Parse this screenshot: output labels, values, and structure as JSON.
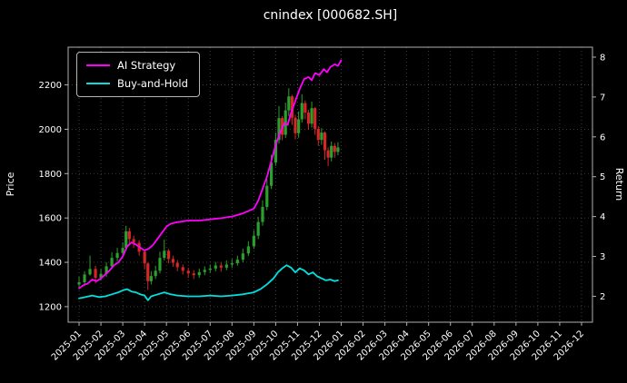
{
  "title": "cnindex [000682.SH]",
  "legend": {
    "items": [
      {
        "label": "AI Strategy",
        "color": "#ff00ff"
      },
      {
        "label": "Buy-and-Hold",
        "color": "#00e0e0"
      }
    ]
  },
  "chart_data": {
    "type": "candlestick+line",
    "title": "cnindex [000682.SH]",
    "background": "#000000",
    "grid": true,
    "legend_position": "upper left",
    "colors": {
      "grid": "#4d4d4d",
      "spine": "#b0b0b0",
      "text": "#ffffff"
    },
    "x_tick_labels": [
      "2025-01",
      "2025-02",
      "2025-03",
      "2025-04",
      "2025-05",
      "2025-06",
      "2025-07",
      "2025-08",
      "2025-09",
      "2025-10",
      "2025-11",
      "2025-12",
      "2026-01",
      "2026-02",
      "2026-03",
      "2026-04",
      "2026-05",
      "2026-06",
      "2026-07",
      "2026-08",
      "2026-09",
      "2026-10",
      "2026-11",
      "2026-12"
    ],
    "x_range_months": [
      -0.5,
      23.5
    ],
    "left_axis": {
      "label": "Price",
      "ticks": [
        1200,
        1400,
        1600,
        1800,
        2000,
        2200
      ],
      "range": [
        1130,
        2370
      ]
    },
    "right_axis": {
      "label": "Return",
      "ticks": [
        2,
        3,
        4,
        5,
        6,
        7,
        8
      ],
      "range": [
        1.35,
        8.25
      ]
    },
    "candles": {
      "name": "OHLC price (t = months since 2025-01)",
      "up_color": "#2ca02c",
      "down_color": "#d62728",
      "columns": [
        "t",
        "open",
        "high",
        "low",
        "close"
      ],
      "points": [
        [
          0.0,
          1300,
          1335,
          1280,
          1310
        ],
        [
          0.25,
          1310,
          1360,
          1295,
          1345
        ],
        [
          0.5,
          1345,
          1430,
          1340,
          1370
        ],
        [
          0.75,
          1370,
          1385,
          1305,
          1330
        ],
        [
          1.0,
          1330,
          1370,
          1318,
          1348
        ],
        [
          1.25,
          1348,
          1400,
          1335,
          1382
        ],
        [
          1.5,
          1382,
          1445,
          1370,
          1420
        ],
        [
          1.75,
          1420,
          1465,
          1405,
          1442
        ],
        [
          2.0,
          1442,
          1490,
          1430,
          1465
        ],
        [
          2.15,
          1465,
          1565,
          1460,
          1540
        ],
        [
          2.3,
          1540,
          1555,
          1480,
          1505
        ],
        [
          2.5,
          1505,
          1520,
          1465,
          1488
        ],
        [
          2.75,
          1488,
          1500,
          1430,
          1448
        ],
        [
          3.0,
          1448,
          1455,
          1370,
          1395
        ],
        [
          3.15,
          1395,
          1400,
          1275,
          1315
        ],
        [
          3.3,
          1315,
          1360,
          1300,
          1338
        ],
        [
          3.5,
          1338,
          1385,
          1325,
          1362
        ],
        [
          3.7,
          1362,
          1448,
          1350,
          1420
        ],
        [
          3.9,
          1420,
          1502,
          1408,
          1452
        ],
        [
          4.1,
          1452,
          1460,
          1395,
          1415
        ],
        [
          4.3,
          1415,
          1430,
          1380,
          1398
        ],
        [
          4.5,
          1398,
          1410,
          1360,
          1378
        ],
        [
          4.75,
          1378,
          1390,
          1345,
          1362
        ],
        [
          5.0,
          1362,
          1375,
          1330,
          1350
        ],
        [
          5.25,
          1350,
          1365,
          1325,
          1342
        ],
        [
          5.5,
          1342,
          1372,
          1330,
          1356
        ],
        [
          5.75,
          1356,
          1382,
          1342,
          1366
        ],
        [
          6.0,
          1366,
          1390,
          1352,
          1372
        ],
        [
          6.25,
          1372,
          1402,
          1360,
          1386
        ],
        [
          6.5,
          1386,
          1398,
          1358,
          1376
        ],
        [
          6.75,
          1376,
          1408,
          1364,
          1390
        ],
        [
          7.0,
          1390,
          1415,
          1375,
          1396
        ],
        [
          7.25,
          1396,
          1430,
          1385,
          1412
        ],
        [
          7.5,
          1412,
          1462,
          1400,
          1440
        ],
        [
          7.75,
          1440,
          1495,
          1428,
          1472
        ],
        [
          8.0,
          1472,
          1545,
          1460,
          1520
        ],
        [
          8.2,
          1520,
          1605,
          1505,
          1582
        ],
        [
          8.4,
          1582,
          1680,
          1565,
          1650
        ],
        [
          8.6,
          1650,
          1775,
          1635,
          1745
        ],
        [
          8.8,
          1745,
          1885,
          1730,
          1850
        ],
        [
          9.0,
          1850,
          1985,
          1835,
          1952
        ],
        [
          9.15,
          1952,
          2105,
          1935,
          2050
        ],
        [
          9.3,
          2050,
          2060,
          1950,
          1975
        ],
        [
          9.45,
          1975,
          2120,
          1960,
          2085
        ],
        [
          9.6,
          2085,
          2185,
          2060,
          2148
        ],
        [
          9.75,
          2148,
          2155,
          2020,
          2052
        ],
        [
          9.9,
          2052,
          2065,
          1955,
          1982
        ],
        [
          10.05,
          1982,
          2080,
          1962,
          2045
        ],
        [
          10.2,
          2045,
          2158,
          2030,
          2118
        ],
        [
          10.35,
          2118,
          2130,
          2045,
          2075
        ],
        [
          10.5,
          2075,
          2088,
          1998,
          2025
        ],
        [
          10.65,
          2025,
          2125,
          2008,
          2095
        ],
        [
          10.8,
          2095,
          2100,
          1975,
          2002
        ],
        [
          10.95,
          2002,
          2015,
          1925,
          1952
        ],
        [
          11.1,
          1952,
          2005,
          1930,
          1985
        ],
        [
          11.25,
          1985,
          1990,
          1862,
          1905
        ],
        [
          11.4,
          1905,
          1918,
          1835,
          1872
        ],
        [
          11.55,
          1872,
          1945,
          1855,
          1925
        ],
        [
          11.7,
          1925,
          1938,
          1872,
          1898
        ],
        [
          11.85,
          1898,
          1942,
          1882,
          1918
        ]
      ]
    },
    "series": [
      {
        "name": "AI Strategy",
        "axis": "right",
        "color": "#ff00ff",
        "points": [
          [
            0,
            2.2
          ],
          [
            0.2,
            2.28
          ],
          [
            0.4,
            2.32
          ],
          [
            0.6,
            2.42
          ],
          [
            0.8,
            2.38
          ],
          [
            1.0,
            2.45
          ],
          [
            1.2,
            2.55
          ],
          [
            1.4,
            2.65
          ],
          [
            1.6,
            2.78
          ],
          [
            1.8,
            2.85
          ],
          [
            2.0,
            3.0
          ],
          [
            2.2,
            3.25
          ],
          [
            2.4,
            3.35
          ],
          [
            2.6,
            3.3
          ],
          [
            2.8,
            3.22
          ],
          [
            3.0,
            3.15
          ],
          [
            3.2,
            3.2
          ],
          [
            3.4,
            3.3
          ],
          [
            3.6,
            3.45
          ],
          [
            3.8,
            3.6
          ],
          [
            4.0,
            3.75
          ],
          [
            4.2,
            3.82
          ],
          [
            4.5,
            3.86
          ],
          [
            5.0,
            3.9
          ],
          [
            5.5,
            3.9
          ],
          [
            6.0,
            3.93
          ],
          [
            6.5,
            3.96
          ],
          [
            7.0,
            4.0
          ],
          [
            7.5,
            4.08
          ],
          [
            8.0,
            4.2
          ],
          [
            8.2,
            4.4
          ],
          [
            8.4,
            4.7
          ],
          [
            8.6,
            5.0
          ],
          [
            8.8,
            5.4
          ],
          [
            9.0,
            5.8
          ],
          [
            9.2,
            6.1
          ],
          [
            9.4,
            6.35
          ],
          [
            9.55,
            6.3
          ],
          [
            9.7,
            6.6
          ],
          [
            9.9,
            6.9
          ],
          [
            10.1,
            7.2
          ],
          [
            10.3,
            7.45
          ],
          [
            10.5,
            7.5
          ],
          [
            10.65,
            7.42
          ],
          [
            10.8,
            7.6
          ],
          [
            11.0,
            7.55
          ],
          [
            11.2,
            7.7
          ],
          [
            11.35,
            7.62
          ],
          [
            11.5,
            7.75
          ],
          [
            11.7,
            7.82
          ],
          [
            11.85,
            7.78
          ],
          [
            12.0,
            7.92
          ]
        ]
      },
      {
        "name": "Buy-and-Hold",
        "axis": "right",
        "color": "#00e0e0",
        "points": [
          [
            0,
            1.95
          ],
          [
            0.3,
            1.98
          ],
          [
            0.6,
            2.02
          ],
          [
            0.9,
            1.98
          ],
          [
            1.2,
            2.0
          ],
          [
            1.5,
            2.05
          ],
          [
            1.8,
            2.1
          ],
          [
            2.0,
            2.15
          ],
          [
            2.2,
            2.18
          ],
          [
            2.4,
            2.12
          ],
          [
            2.6,
            2.1
          ],
          [
            2.8,
            2.05
          ],
          [
            3.0,
            2.02
          ],
          [
            3.15,
            1.9
          ],
          [
            3.3,
            2.0
          ],
          [
            3.6,
            2.05
          ],
          [
            3.9,
            2.1
          ],
          [
            4.2,
            2.05
          ],
          [
            4.5,
            2.02
          ],
          [
            5.0,
            2.0
          ],
          [
            5.5,
            2.0
          ],
          [
            6.0,
            2.02
          ],
          [
            6.5,
            2.0
          ],
          [
            7.0,
            2.02
          ],
          [
            7.5,
            2.05
          ],
          [
            8.0,
            2.1
          ],
          [
            8.3,
            2.18
          ],
          [
            8.6,
            2.3
          ],
          [
            8.9,
            2.45
          ],
          [
            9.1,
            2.6
          ],
          [
            9.3,
            2.7
          ],
          [
            9.5,
            2.78
          ],
          [
            9.7,
            2.72
          ],
          [
            9.9,
            2.6
          ],
          [
            10.1,
            2.7
          ],
          [
            10.3,
            2.65
          ],
          [
            10.5,
            2.55
          ],
          [
            10.7,
            2.6
          ],
          [
            10.9,
            2.5
          ],
          [
            11.1,
            2.45
          ],
          [
            11.3,
            2.4
          ],
          [
            11.5,
            2.42
          ],
          [
            11.7,
            2.38
          ],
          [
            11.85,
            2.4
          ]
        ]
      }
    ]
  }
}
